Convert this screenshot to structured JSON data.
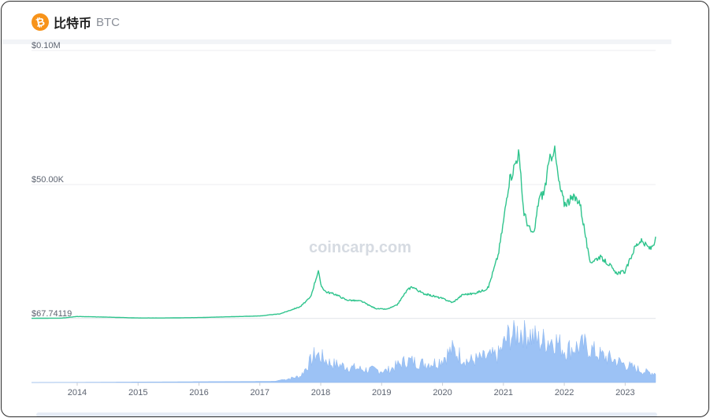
{
  "header": {
    "coin_icon": "bitcoin-icon",
    "coin_icon_glyph": "₿",
    "coin_name": "比特币",
    "coin_symbol": "BTC"
  },
  "watermark": "coincarp.com",
  "colors": {
    "price_line": "#2fc48d",
    "volume_fill": "#9cc2f5",
    "volume_stroke": "#86b2ef",
    "grid": "#eceef2",
    "baseline": "#dfe3e8"
  },
  "chart_data": {
    "type": "line",
    "x_label": "",
    "y_label": "",
    "ylim": [
      0,
      100000
    ],
    "xlim": [
      "2013-04",
      "2023-07"
    ],
    "y_ticks": [
      {
        "label": "$0.10M",
        "value": 100000
      },
      {
        "label": "$50.00K",
        "value": 50000
      },
      {
        "label": "$67.74119",
        "value": 67.74
      }
    ],
    "x_ticks": [
      "2014",
      "2015",
      "2016",
      "2017",
      "2018",
      "2019",
      "2020",
      "2021",
      "2022",
      "2023"
    ],
    "series": [
      {
        "kind": "price",
        "x": [
          "2013-04",
          "2013-10",
          "2014-01",
          "2014-06",
          "2015-01",
          "2015-06",
          "2016-01",
          "2016-06",
          "2017-01",
          "2017-05",
          "2017-09",
          "2017-11",
          "2017-12-17",
          "2018-01",
          "2018-02",
          "2018-04",
          "2018-06",
          "2018-09",
          "2018-11",
          "2018-12",
          "2019-02",
          "2019-04",
          "2019-06",
          "2019-07",
          "2019-09",
          "2019-11",
          "2020-01",
          "2020-03",
          "2020-05",
          "2020-07",
          "2020-09",
          "2020-10",
          "2020-12",
          "2021-01",
          "2021-02",
          "2021-04",
          "2021-05",
          "2021-06",
          "2021-07",
          "2021-08",
          "2021-09",
          "2021-10",
          "2021-11",
          "2021-12",
          "2022-01",
          "2022-03",
          "2022-04",
          "2022-05",
          "2022-06",
          "2022-08",
          "2022-10",
          "2022-11",
          "2023-01",
          "2023-03",
          "2023-04",
          "2023-06",
          "2023-07"
        ],
        "y": [
          120,
          200,
          800,
          600,
          250,
          240,
          400,
          650,
          1000,
          1800,
          4500,
          8000,
          18000,
          12500,
          10000,
          9000,
          7000,
          6500,
          4500,
          3700,
          3500,
          5000,
          10500,
          12000,
          9500,
          8500,
          7500,
          6000,
          9000,
          9300,
          10500,
          11500,
          24000,
          36000,
          50000,
          62000,
          40000,
          34000,
          31000,
          45000,
          47000,
          58000,
          64000,
          50000,
          43000,
          45000,
          44000,
          33000,
          21000,
          23000,
          20000,
          17000,
          17500,
          27000,
          29000,
          26000,
          29500
        ]
      },
      {
        "kind": "volume",
        "x": [
          "2013-04",
          "2017-04",
          "2017-09",
          "2017-12",
          "2018-03",
          "2018-09",
          "2019-02",
          "2019-06",
          "2019-09",
          "2019-12",
          "2020-03",
          "2020-06",
          "2020-09",
          "2020-12",
          "2021-02",
          "2021-05",
          "2021-08",
          "2021-11",
          "2022-01",
          "2022-05",
          "2022-08",
          "2022-11",
          "2023-02",
          "2023-05",
          "2023-07"
        ],
        "y": [
          0,
          0.02,
          0.12,
          0.55,
          0.36,
          0.25,
          0.22,
          0.42,
          0.36,
          0.38,
          0.62,
          0.4,
          0.46,
          0.52,
          0.88,
          1.0,
          0.78,
          0.82,
          0.62,
          0.7,
          0.52,
          0.42,
          0.3,
          0.2,
          0.18
        ]
      }
    ]
  }
}
